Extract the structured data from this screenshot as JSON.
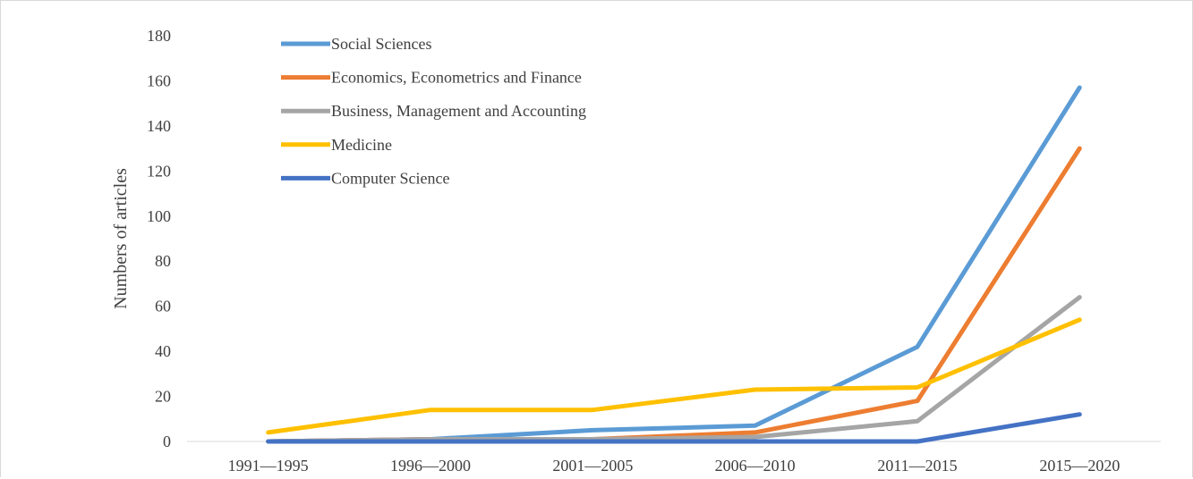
{
  "chart_data": {
    "type": "line",
    "title": "",
    "xlabel": "",
    "ylabel": "Numbers of articles",
    "categories": [
      "1991—1995",
      "1996—2000",
      "2001—2005",
      "2006—2010",
      "2011—2015",
      "2015—2020"
    ],
    "ylim": [
      0,
      180
    ],
    "yticks": [
      0,
      20,
      40,
      60,
      80,
      100,
      120,
      140,
      160,
      180
    ],
    "grid": false,
    "legend_position": "top-left",
    "series": [
      {
        "name": "Social Sciences",
        "color": "#5b9bd5",
        "values": [
          0,
          1,
          5,
          7,
          42,
          157
        ]
      },
      {
        "name": "Economics, Econometrics and Finance",
        "color": "#ed7d31",
        "values": [
          0,
          1,
          1,
          4,
          18,
          130
        ]
      },
      {
        "name": "Business, Management and Accounting",
        "color": "#a5a5a5",
        "values": [
          0,
          1,
          1,
          2,
          9,
          64
        ]
      },
      {
        "name": "Medicine",
        "color": "#ffc000",
        "values": [
          4,
          14,
          14,
          23,
          24,
          54
        ]
      },
      {
        "name": "Computer Science",
        "color": "#4472c4",
        "values": [
          0,
          0,
          0,
          0,
          0,
          12
        ]
      }
    ]
  }
}
